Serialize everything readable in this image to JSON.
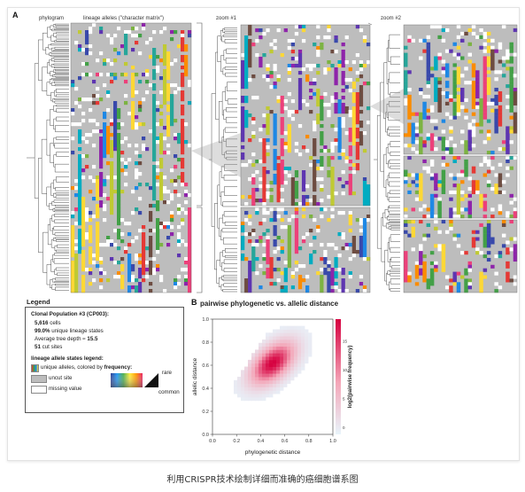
{
  "panel_a": {
    "letter": "A",
    "phylogram_label": "phylogram",
    "matrix_label": "lineage alleles (\"character matrix\")",
    "zoom1_label": "zoom #1",
    "zoom2_label": "zoom #2"
  },
  "legend": {
    "title": "Legend",
    "population": "Clonal Population #3 (CP003):",
    "cells_num": "5,616",
    "cells_text": "cells",
    "unique_num": "99.0%",
    "unique_text": "unique lineage states",
    "depth_text": "Average tree depth ≈",
    "depth_num": "15.5",
    "sites_num": "51",
    "sites_text": "cut sites",
    "states_title": "lineage allele states legend:",
    "unique_alleles": "unique alleles, colored by",
    "frequency": "frequency:",
    "uncut": "uncut site",
    "missing": "missing value",
    "rare": "rare",
    "common": "common"
  },
  "panel_b": {
    "letter": "B",
    "title": "pairwise phylogenetic vs. allelic distance",
    "colorbar_label": "log2(pairwise frequency)"
  },
  "chart_data": {
    "type": "heatmap",
    "title": "pairwise phylogenetic vs. allelic distance",
    "xlabel": "phylogenetic distance",
    "ylabel": "allelic distance",
    "xlim": [
      0.0,
      1.0
    ],
    "ylim": [
      0.0,
      1.0
    ],
    "xticks": [
      "0.0",
      "0.2",
      "0.4",
      "0.6",
      "0.8",
      "1.0"
    ],
    "yticks": [
      "0.0",
      "0.2",
      "0.4",
      "0.6",
      "0.8",
      "1.0"
    ],
    "colorbar_ticks": [
      "0",
      "5",
      "10",
      "15"
    ],
    "colorbar_label": "log2(pairwise frequency)",
    "peak": {
      "x": 0.5,
      "y": 0.62
    },
    "colors": {
      "low": "#e8f4fb",
      "mid": "#f4a6b8",
      "high": "#d6003f"
    }
  },
  "caption": "利用CRISPR技术绘制详细而准确的癌细胞谱系图"
}
